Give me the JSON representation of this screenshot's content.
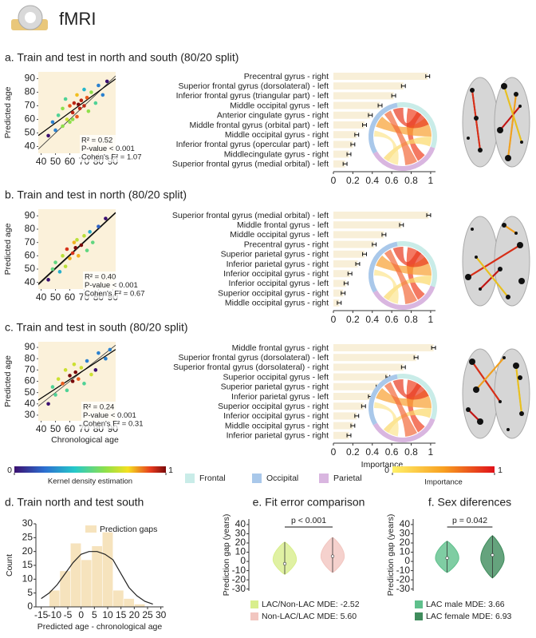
{
  "header": {
    "title": "fMRI"
  },
  "legends": {
    "density": {
      "title": "Kernel density estimation",
      "ticks": [
        0,
        1
      ]
    },
    "regions": [
      {
        "name": "Frontal",
        "color": "#c9ece8"
      },
      {
        "name": "Occipital",
        "color": "#a9c8ea"
      },
      {
        "name": "Parietal",
        "color": "#d9b6e0"
      }
    ],
    "importance": {
      "title": "Importance",
      "ticks": [
        0,
        1
      ]
    }
  },
  "chart_data": [
    {
      "type": "scatter",
      "title": "a. Train and test in north and south (80/20 split)",
      "ylabel": "Predicted age",
      "x": [
        45,
        48,
        50,
        52,
        55,
        55,
        58,
        60,
        60,
        62,
        63,
        65,
        65,
        67,
        68,
        70,
        70,
        72,
        73,
        75,
        78,
        80,
        83,
        86,
        62,
        57,
        66
      ],
      "values": [
        48,
        58,
        52,
        63,
        55,
        68,
        60,
        58,
        70,
        65,
        72,
        62,
        78,
        68,
        74,
        70,
        82,
        76,
        66,
        80,
        72,
        85,
        78,
        88,
        60,
        75,
        71
      ],
      "xlim": [
        38,
        92
      ],
      "xticks": [
        40,
        50,
        60,
        70,
        80,
        90
      ],
      "ylim": [
        35,
        95
      ],
      "yticks": [
        40,
        50,
        60,
        70,
        80,
        90
      ],
      "annotations": [
        "R² = 0.52",
        "P-value < 0.001",
        "Cohen's F² = 1.07"
      ]
    },
    {
      "type": "hbar",
      "categories": [
        "Precentral gyrus - right",
        "Superior frontal gyrus (dorsolateral) - left",
        "Inferior frontal gyrus (triangular part) - left",
        "Middle occipital gyrus - left",
        "Anterior cingulate gyrus - right",
        "Middle frontal gyrus (orbital part) - left",
        "Middle occipital gyrus - right",
        "Inferior frontal gyrus (opercular part) - left",
        "Middlecingulate gyrus - right",
        "Superior frontal gyrus (medial orbital) - left"
      ],
      "values": [
        0.97,
        0.72,
        0.62,
        0.48,
        0.38,
        0.32,
        0.24,
        0.2,
        0.16,
        0.12
      ],
      "errors": [
        0.02,
        0.02,
        0.02,
        0.02,
        0.02,
        0.02,
        0.02,
        0.02,
        0.02,
        0.02
      ],
      "color": "#f8efd8",
      "xlim": [
        0,
        1.05
      ],
      "xticks": [
        0,
        0.2,
        0.4,
        0.6,
        0.8,
        1
      ]
    },
    {
      "type": "scatter",
      "title": "b. Train and test in north (80/20 split)",
      "ylabel": "Predicted age",
      "x": [
        45,
        48,
        50,
        53,
        55,
        57,
        58,
        60,
        62,
        63,
        64,
        65,
        66,
        68,
        70,
        72,
        74,
        76,
        80,
        85
      ],
      "values": [
        42,
        50,
        55,
        48,
        60,
        52,
        65,
        58,
        62,
        70,
        66,
        72,
        60,
        68,
        75,
        64,
        78,
        70,
        82,
        88
      ],
      "xlim": [
        38,
        92
      ],
      "xticks": [
        40,
        50,
        60,
        70,
        80,
        90
      ],
      "ylim": [
        35,
        95
      ],
      "yticks": [
        40,
        50,
        60,
        70,
        80,
        90
      ],
      "annotations": [
        "R² = 0.40",
        "P-value < 0.001",
        "Cohen's F² = 0.67"
      ]
    },
    {
      "type": "hbar",
      "categories": [
        "Superior frontal gyrus (medial orbital) - left",
        "Middle frontal gyrus - left",
        "Middle occipital gyrus - left",
        "Precentral gyrus - right",
        "Superior parietal gyrus - right",
        "Inferior parietal gyrus - right",
        "Inferior occipital gyrus - right",
        "Inferior occipital gyrus - left",
        "Superior occipital gyrus - right",
        "Middle occipital gyrus - right"
      ],
      "values": [
        0.98,
        0.7,
        0.52,
        0.42,
        0.32,
        0.25,
        0.17,
        0.13,
        0.1,
        0.06
      ],
      "errors": [
        0.02,
        0.02,
        0.02,
        0.02,
        0.02,
        0.02,
        0.02,
        0.02,
        0.02,
        0.02
      ],
      "color": "#f8efd8",
      "xlim": [
        0,
        1.05
      ],
      "xticks": [
        0,
        0.2,
        0.4,
        0.6,
        0.8,
        1
      ]
    },
    {
      "type": "scatter",
      "title": "c. Train and test in south (80/20 split)",
      "ylabel": "Predicted age",
      "xlabel": "Chronological age",
      "x": [
        45,
        48,
        50,
        52,
        55,
        57,
        58,
        60,
        62,
        63,
        64,
        66,
        68,
        70,
        72,
        75,
        78,
        80,
        85,
        88
      ],
      "values": [
        40,
        55,
        48,
        62,
        58,
        70,
        52,
        65,
        60,
        75,
        68,
        62,
        72,
        58,
        78,
        66,
        70,
        85,
        80,
        88
      ],
      "xlim": [
        38,
        92
      ],
      "xticks": [
        40,
        50,
        60,
        70,
        80,
        90
      ],
      "ylim": [
        25,
        95
      ],
      "yticks": [
        30,
        40,
        50,
        60,
        70,
        80,
        90
      ],
      "annotations": [
        "R² = 0.24",
        "P-value < 0.001",
        "Cohen's F² = 0.31"
      ]
    },
    {
      "type": "hbar",
      "xlabel": "Importance",
      "categories": [
        "Middle frontal gyrus - right",
        "Superior frontal gyrus (dorsolateral) - left",
        "Superior frontal gyrus (dorsolateral) - right",
        "Superior occipital gyrus - left",
        "Superior parietal gyrus - right",
        "Inferior parietal gyrus - left",
        "Superior occipital gyrus - right",
        "Inferior occipital gyrus - right",
        "Middle occipital gyrus - right",
        "Inferior parietal gyrus - right"
      ],
      "values": [
        1.03,
        0.85,
        0.72,
        0.56,
        0.46,
        0.38,
        0.31,
        0.24,
        0.2,
        0.16
      ],
      "errors": [
        0.02,
        0.02,
        0.02,
        0.02,
        0.02,
        0.02,
        0.02,
        0.02,
        0.02,
        0.02
      ],
      "color": "#f8efd8",
      "xlim": [
        0,
        1.05
      ],
      "xticks": [
        0,
        0.2,
        0.4,
        0.6,
        0.8,
        1
      ]
    },
    {
      "type": "histogram",
      "title": "d. Train north and test south",
      "xlabel": "Predicted age - chronological age",
      "ylabel": "Count",
      "series_name": "Prediction gaps",
      "color": "#f6e3bd",
      "bins": [
        -12,
        -8,
        -4,
        0,
        4,
        8,
        12,
        16,
        20,
        24
      ],
      "values": [
        6,
        13,
        23,
        17,
        22,
        27,
        6,
        3,
        1
      ],
      "density": {
        "x": [
          -15,
          -12,
          -9,
          -6,
          -3,
          0,
          3,
          6,
          9,
          12,
          15,
          18,
          21,
          24,
          27
        ],
        "values": [
          3,
          5,
          8,
          12,
          16,
          19,
          20,
          20,
          19,
          17,
          12,
          7,
          4,
          2,
          1
        ]
      },
      "xlim": [
        -17,
        31
      ],
      "xticks": [
        -15,
        -10,
        -5,
        0,
        5,
        10,
        15,
        20,
        25,
        30
      ],
      "ylim": [
        0,
        30
      ],
      "yticks": [
        0,
        5,
        10,
        15,
        20,
        25,
        30
      ]
    },
    {
      "type": "violin",
      "title": "e. Fit error comparison",
      "ylabel": "Prediction gap (years)",
      "annotation": "p < 0.001",
      "series": [
        {
          "name": "LAC/Non-LAC MDE: -2.52",
          "color": "#d8ee8c",
          "median": -2.52,
          "range": [
            -14,
            21
          ]
        },
        {
          "name": "Non-LAC/LAC MDE: 5.60",
          "color": "#f2c6c0",
          "median": 5.6,
          "range": [
            -12,
            26
          ]
        }
      ],
      "ylim": [
        -32,
        46
      ],
      "yticks": [
        -30,
        -20,
        -10,
        0,
        10,
        20,
        30,
        40
      ]
    },
    {
      "type": "violin",
      "title": "f. Sex diferences",
      "ylabel": "Prediction gap (years)",
      "annotation": "p = 0.042",
      "series": [
        {
          "name": "LAC male MDE: 3.66",
          "color": "#5fc08c",
          "median": 3.66,
          "range": [
            -12,
            22
          ]
        },
        {
          "name": "LAC female MDE: 6.93",
          "color": "#3f8c5c",
          "median": 6.93,
          "range": [
            -18,
            28
          ]
        }
      ],
      "ylim": [
        -32,
        46
      ],
      "yticks": [
        -30,
        -20,
        -10,
        0,
        10,
        20,
        30,
        40
      ]
    }
  ]
}
